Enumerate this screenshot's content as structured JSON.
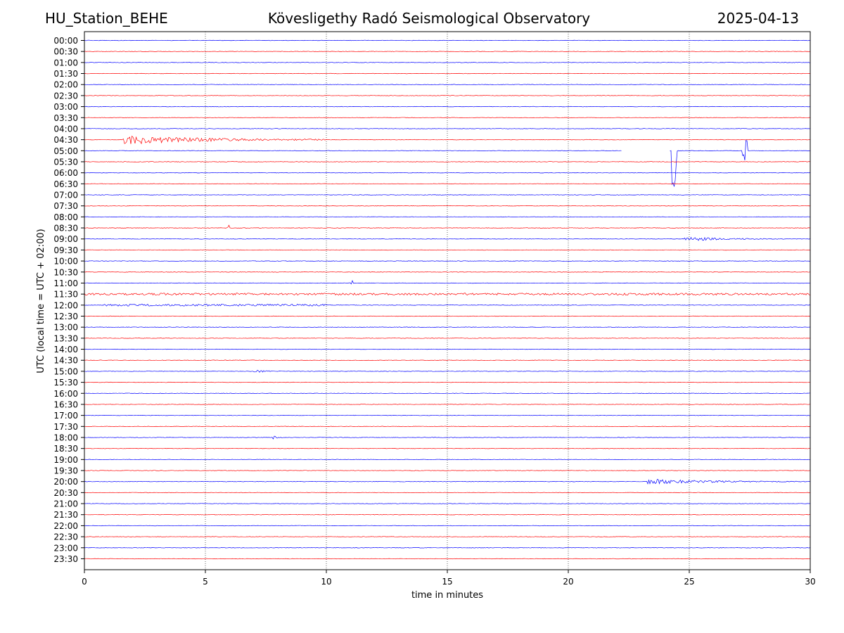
{
  "header": {
    "station": "HU_Station_BEHE",
    "title": "Kövesligethy Radó Seismological Observatory",
    "date": "2025-04-13"
  },
  "colors": {
    "trace_a": "#ff0000",
    "trace_b": "#0000ff",
    "grid": "#000000",
    "frame": "#000000"
  },
  "chart_data": {
    "type": "line",
    "title": "Kövesligethy Radó Seismological Observatory",
    "xlabel": "time in minutes",
    "ylabel": "UTC (local time = UTC + 02:00)",
    "xlim": [
      0,
      30
    ],
    "x_ticks": [
      0,
      5,
      10,
      15,
      20,
      25,
      30
    ],
    "x_tick_labels": [
      "0",
      "5",
      "10",
      "15",
      "20",
      "25",
      "30"
    ],
    "vertical_grid_minutes": [
      5,
      10,
      15,
      20,
      25
    ],
    "row_labels": [
      "00:00",
      "00:30",
      "01:00",
      "01:30",
      "02:00",
      "02:30",
      "03:00",
      "03:30",
      "04:00",
      "04:30",
      "05:00",
      "05:30",
      "06:00",
      "06:30",
      "07:00",
      "07:30",
      "08:00",
      "08:30",
      "09:00",
      "09:30",
      "10:00",
      "10:30",
      "11:00",
      "11:30",
      "12:00",
      "12:30",
      "13:00",
      "13:30",
      "14:00",
      "14:30",
      "15:00",
      "15:30",
      "16:00",
      "16:30",
      "17:00",
      "17:30",
      "18:00",
      "18:30",
      "19:00",
      "19:30",
      "20:00",
      "20:30",
      "21:00",
      "21:30",
      "22:00",
      "22:30",
      "23:00",
      "23:30"
    ],
    "row_colors": [
      "blue",
      "red",
      "blue",
      "red",
      "blue",
      "red",
      "blue",
      "red",
      "blue",
      "red",
      "blue",
      "red",
      "blue",
      "red",
      "blue",
      "red",
      "blue",
      "red",
      "blue",
      "red",
      "blue",
      "red",
      "blue",
      "red",
      "blue",
      "red",
      "blue",
      "red",
      "blue",
      "red",
      "blue",
      "red",
      "blue",
      "red",
      "blue",
      "red",
      "blue",
      "red",
      "blue",
      "red",
      "blue",
      "red",
      "blue",
      "red",
      "blue",
      "red",
      "blue",
      "red"
    ],
    "events": [
      {
        "row": "04:30",
        "start_min": 1.6,
        "end_min": 10.0,
        "amplitude": 7,
        "kind": "surface-wave train"
      },
      {
        "row": "05:00",
        "start_min": 24.25,
        "end_min": 24.5,
        "amplitude": 60,
        "kind": "spike"
      },
      {
        "row": "05:00",
        "start_min": 27.2,
        "end_min": 27.4,
        "amplitude": 18,
        "kind": "spike"
      },
      {
        "row": "05:00",
        "start_min": 22.2,
        "end_min": 24.2,
        "amplitude": 9,
        "kind": "gap"
      },
      {
        "row": "08:30",
        "start_min": 5.9,
        "end_min": 6.0,
        "amplitude": 4,
        "kind": "spike"
      },
      {
        "row": "09:00",
        "start_min": 24.8,
        "end_min": 30.0,
        "amplitude": 3,
        "kind": "wave train"
      },
      {
        "row": "11:00",
        "start_min": 11.0,
        "end_min": 11.1,
        "amplitude": 4,
        "kind": "spike"
      },
      {
        "row": "11:30",
        "start_min": 0.0,
        "end_min": 30.0,
        "amplitude": 2,
        "kind": "noise"
      },
      {
        "row": "12:00",
        "start_min": 0.8,
        "end_min": 10.0,
        "amplitude": 2,
        "kind": "noise"
      },
      {
        "row": "15:00",
        "start_min": 7.0,
        "end_min": 9.0,
        "amplitude": 2,
        "kind": "burst"
      },
      {
        "row": "18:00",
        "start_min": 7.8,
        "end_min": 8.2,
        "amplitude": 3,
        "kind": "burst"
      },
      {
        "row": "20:00",
        "start_min": 23.2,
        "end_min": 30.0,
        "amplitude": 4,
        "kind": "wave train"
      }
    ]
  }
}
